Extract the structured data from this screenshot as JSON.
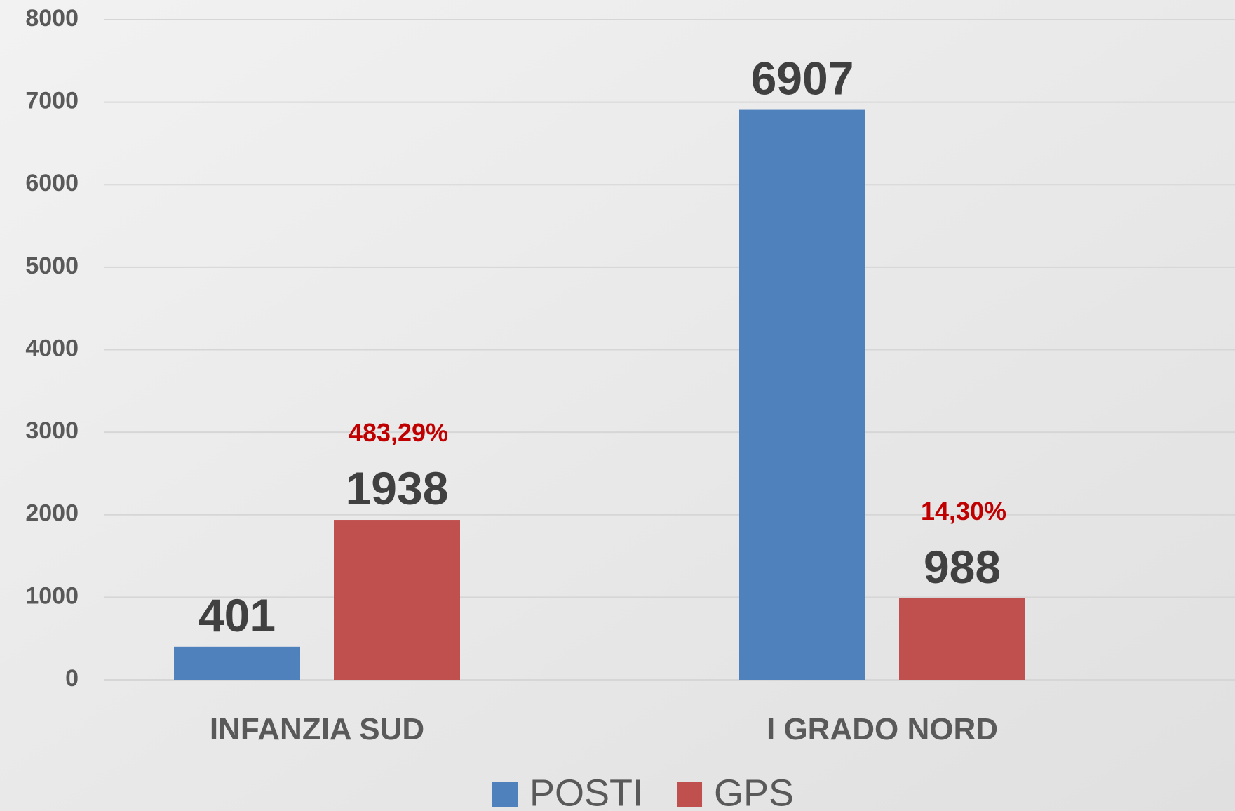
{
  "chart_data": {
    "type": "bar",
    "categories": [
      "INFANZIA SUD",
      "I GRADO NORD"
    ],
    "series": [
      {
        "name": "POSTI",
        "color": "#4f81bd",
        "values": [
          401,
          6907
        ]
      },
      {
        "name": "GPS",
        "color": "#c0504d",
        "values": [
          1938,
          988
        ],
        "percent_labels": [
          "483,29%",
          "14,30%"
        ]
      }
    ],
    "ylim": [
      0,
      8000
    ],
    "yticks": [
      0,
      1000,
      2000,
      3000,
      4000,
      5000,
      6000,
      7000,
      8000
    ],
    "grid": true,
    "legend": "bottom"
  }
}
